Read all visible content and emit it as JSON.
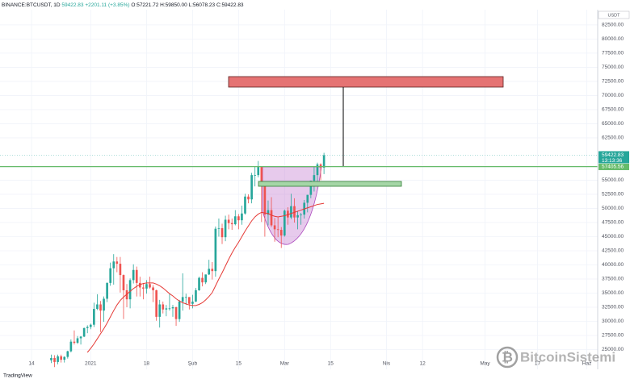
{
  "header": {
    "symbol": "BINANCE:BTCUSDT, 1D",
    "price": "59422.83",
    "change": "+2201.11 (+3.85%)",
    "o": "O:57221.72",
    "h": "H:59850.00",
    "l": "L:56078.23",
    "c": "C:59422.83"
  },
  "chart_data": {
    "type": "candlestick",
    "currency": "USDT",
    "up_color": "#26a69a",
    "down_color": "#ef5350",
    "xlim": [
      -15.6,
      166.3
    ],
    "xticks": [
      {
        "value": -6,
        "label": "14"
      },
      {
        "value": 12,
        "label": "2021"
      },
      {
        "value": 29,
        "label": "18"
      },
      {
        "value": 43,
        "label": "Şub"
      },
      {
        "value": 57,
        "label": "15"
      },
      {
        "value": 71,
        "label": "Mar"
      },
      {
        "value": 85,
        "label": "15"
      },
      {
        "value": 102,
        "label": "Nis"
      },
      {
        "value": 113,
        "label": "12"
      },
      {
        "value": 132,
        "label": "May"
      },
      {
        "value": 148,
        "label": "17"
      },
      {
        "value": 163,
        "label": "Haz"
      }
    ],
    "ylim": [
      21500,
      85200
    ],
    "yticks": [
      {
        "value": 25000,
        "label": "25000.00"
      },
      {
        "value": 27500,
        "label": "27500.00"
      },
      {
        "value": 30000,
        "label": "30000.00"
      },
      {
        "value": 32500,
        "label": "32500.00"
      },
      {
        "value": 35000,
        "label": "35000.00"
      },
      {
        "value": 37500,
        "label": "37500.00"
      },
      {
        "value": 40000,
        "label": "40000.00"
      },
      {
        "value": 42500,
        "label": "42500.00"
      },
      {
        "value": 45000,
        "label": "45000.00"
      },
      {
        "value": 47500,
        "label": "47500.00"
      },
      {
        "value": 50000,
        "label": "50000.00"
      },
      {
        "value": 52500,
        "label": "52500.00"
      },
      {
        "value": 55000,
        "label": "55000.00"
      },
      {
        "value": 62500,
        "label": "62500.00"
      },
      {
        "value": 65000,
        "label": "65000.00"
      },
      {
        "value": 67500,
        "label": "67500.00"
      },
      {
        "value": 70000,
        "label": "70000.00"
      },
      {
        "value": 72500,
        "label": "72500.00"
      },
      {
        "value": 75000,
        "label": "75000.00"
      },
      {
        "value": 77500,
        "label": "77500.00"
      },
      {
        "value": 80000,
        "label": "80000.00"
      },
      {
        "value": 82500,
        "label": "82500.00"
      }
    ],
    "grid": true,
    "candles": [
      [
        23100,
        24100,
        22600,
        23500
      ],
      [
        23500,
        24000,
        21900,
        22800
      ],
      [
        22800,
        24100,
        22400,
        23800
      ],
      [
        23800,
        24100,
        22700,
        23200
      ],
      [
        23200,
        23800,
        22700,
        23700
      ],
      [
        23700,
        24800,
        23400,
        24700
      ],
      [
        24700,
        26800,
        24500,
        26400
      ],
      [
        26400,
        28400,
        25900,
        26200
      ],
      [
        26200,
        27400,
        26000,
        27000
      ],
      [
        27000,
        27400,
        25900,
        27300
      ],
      [
        27300,
        28900,
        27200,
        28800
      ],
      [
        28800,
        29300,
        27900,
        29000
      ],
      [
        29000,
        29600,
        28600,
        29400
      ],
      [
        29400,
        33300,
        29000,
        32200
      ],
      [
        32200,
        34800,
        32000,
        33000
      ],
      [
        33000,
        33600,
        28100,
        31900
      ],
      [
        31900,
        34400,
        29900,
        34000
      ],
      [
        34000,
        36900,
        33400,
        36800
      ],
      [
        36800,
        40400,
        36300,
        39400
      ],
      [
        39400,
        41900,
        36500,
        40600
      ],
      [
        40600,
        41400,
        38700,
        40200
      ],
      [
        40200,
        41400,
        35100,
        38200
      ],
      [
        38200,
        38300,
        30400,
        35500
      ],
      [
        35500,
        36600,
        32500,
        33900
      ],
      [
        33900,
        37600,
        32300,
        37300
      ],
      [
        37300,
        40100,
        36700,
        39100
      ],
      [
        39100,
        39700,
        34400,
        36800
      ],
      [
        36800,
        37900,
        34400,
        36000
      ],
      [
        36000,
        36800,
        33900,
        35800
      ],
      [
        35800,
        37300,
        34900,
        36600
      ],
      [
        36600,
        37900,
        35800,
        36000
      ],
      [
        36000,
        36400,
        33400,
        35500
      ],
      [
        35500,
        35600,
        30100,
        30800
      ],
      [
        30800,
        33800,
        28900,
        33000
      ],
      [
        33000,
        33500,
        31400,
        32100
      ],
      [
        32100,
        32900,
        30900,
        32300
      ],
      [
        32300,
        34900,
        31900,
        32300
      ],
      [
        32300,
        32900,
        30800,
        32500
      ],
      [
        32500,
        32600,
        29200,
        30400
      ],
      [
        30400,
        33800,
        29900,
        33500
      ],
      [
        33500,
        38500,
        31900,
        34300
      ],
      [
        34300,
        34900,
        32900,
        34300
      ],
      [
        34300,
        34300,
        32100,
        33100
      ],
      [
        33100,
        34700,
        32300,
        33500
      ],
      [
        33500,
        35900,
        33400,
        35500
      ],
      [
        35500,
        37900,
        35400,
        37700
      ],
      [
        37700,
        38700,
        36200,
        36900
      ],
      [
        36900,
        38300,
        36600,
        38300
      ],
      [
        38300,
        40900,
        38200,
        39300
      ],
      [
        39300,
        40500,
        37400,
        38900
      ],
      [
        38900,
        46800,
        37900,
        46400
      ],
      [
        46400,
        48200,
        45000,
        46500
      ],
      [
        46500,
        47300,
        43700,
        44900
      ],
      [
        44900,
        48700,
        44200,
        48000
      ],
      [
        48000,
        48900,
        46300,
        47400
      ],
      [
        47400,
        48200,
        46200,
        47200
      ],
      [
        47200,
        49700,
        47000,
        48600
      ],
      [
        48600,
        49000,
        46300,
        47900
      ],
      [
        47900,
        50500,
        47100,
        49100
      ],
      [
        49100,
        52600,
        48900,
        52100
      ],
      [
        52100,
        52500,
        50900,
        51600
      ],
      [
        51600,
        56300,
        50900,
        55900
      ],
      [
        55900,
        57500,
        53900,
        55900
      ],
      [
        55900,
        58400,
        55500,
        57400
      ],
      [
        57400,
        57500,
        47600,
        54100
      ],
      [
        54100,
        54200,
        45000,
        48900
      ],
      [
        48900,
        51400,
        47000,
        49700
      ],
      [
        49700,
        52000,
        46700,
        47000
      ],
      [
        47000,
        48300,
        44100,
        46300
      ],
      [
        46300,
        48400,
        44900,
        46200
      ],
      [
        46200,
        46700,
        43000,
        45200
      ],
      [
        45200,
        49800,
        45000,
        49600
      ],
      [
        49600,
        50200,
        47100,
        48400
      ],
      [
        48400,
        52600,
        48100,
        50400
      ],
      [
        50400,
        51800,
        47500,
        48400
      ],
      [
        48400,
        49500,
        46300,
        48800
      ],
      [
        48800,
        49200,
        47100,
        48900
      ],
      [
        48900,
        51500,
        48200,
        51000
      ],
      [
        51000,
        52400,
        49300,
        52400
      ],
      [
        52400,
        54900,
        51800,
        54900
      ],
      [
        54900,
        57400,
        53000,
        55900
      ],
      [
        55900,
        58100,
        54300,
        57800
      ],
      [
        57800,
        58000,
        55000,
        57221.72
      ],
      [
        57221.72,
        59850,
        56078.23,
        59422.83
      ]
    ],
    "ma_color": "#e53935",
    "ma_values": [
      null,
      null,
      null,
      null,
      null,
      null,
      null,
      null,
      null,
      null,
      null,
      24500,
      25200,
      26000,
      26900,
      27800,
      28700,
      29700,
      30800,
      31900,
      32900,
      33700,
      34300,
      34800,
      35300,
      35800,
      36200,
      36500,
      36700,
      36800,
      36800,
      36800,
      36600,
      36300,
      35900,
      35400,
      34900,
      34500,
      34000,
      33600,
      33300,
      33100,
      32900,
      32800,
      32800,
      33000,
      33300,
      33800,
      34400,
      35100,
      36300,
      37500,
      38600,
      39800,
      41000,
      42100,
      43100,
      44000,
      45000,
      46000,
      46900,
      47800,
      48500,
      49000,
      49300,
      49200,
      49100,
      48800,
      48600,
      48500,
      48600,
      48700,
      48900,
      49100,
      49300,
      49500,
      49700,
      49900,
      50100,
      50300,
      50500,
      50700,
      50800,
      50900
    ],
    "last_price": 59422.83,
    "countdown": "13:13:36",
    "hline": 57405.56,
    "hline_color": "#66bb6a"
  },
  "branding": {
    "platform": "TradingView",
    "watermark": "BitcoinSistemi"
  }
}
